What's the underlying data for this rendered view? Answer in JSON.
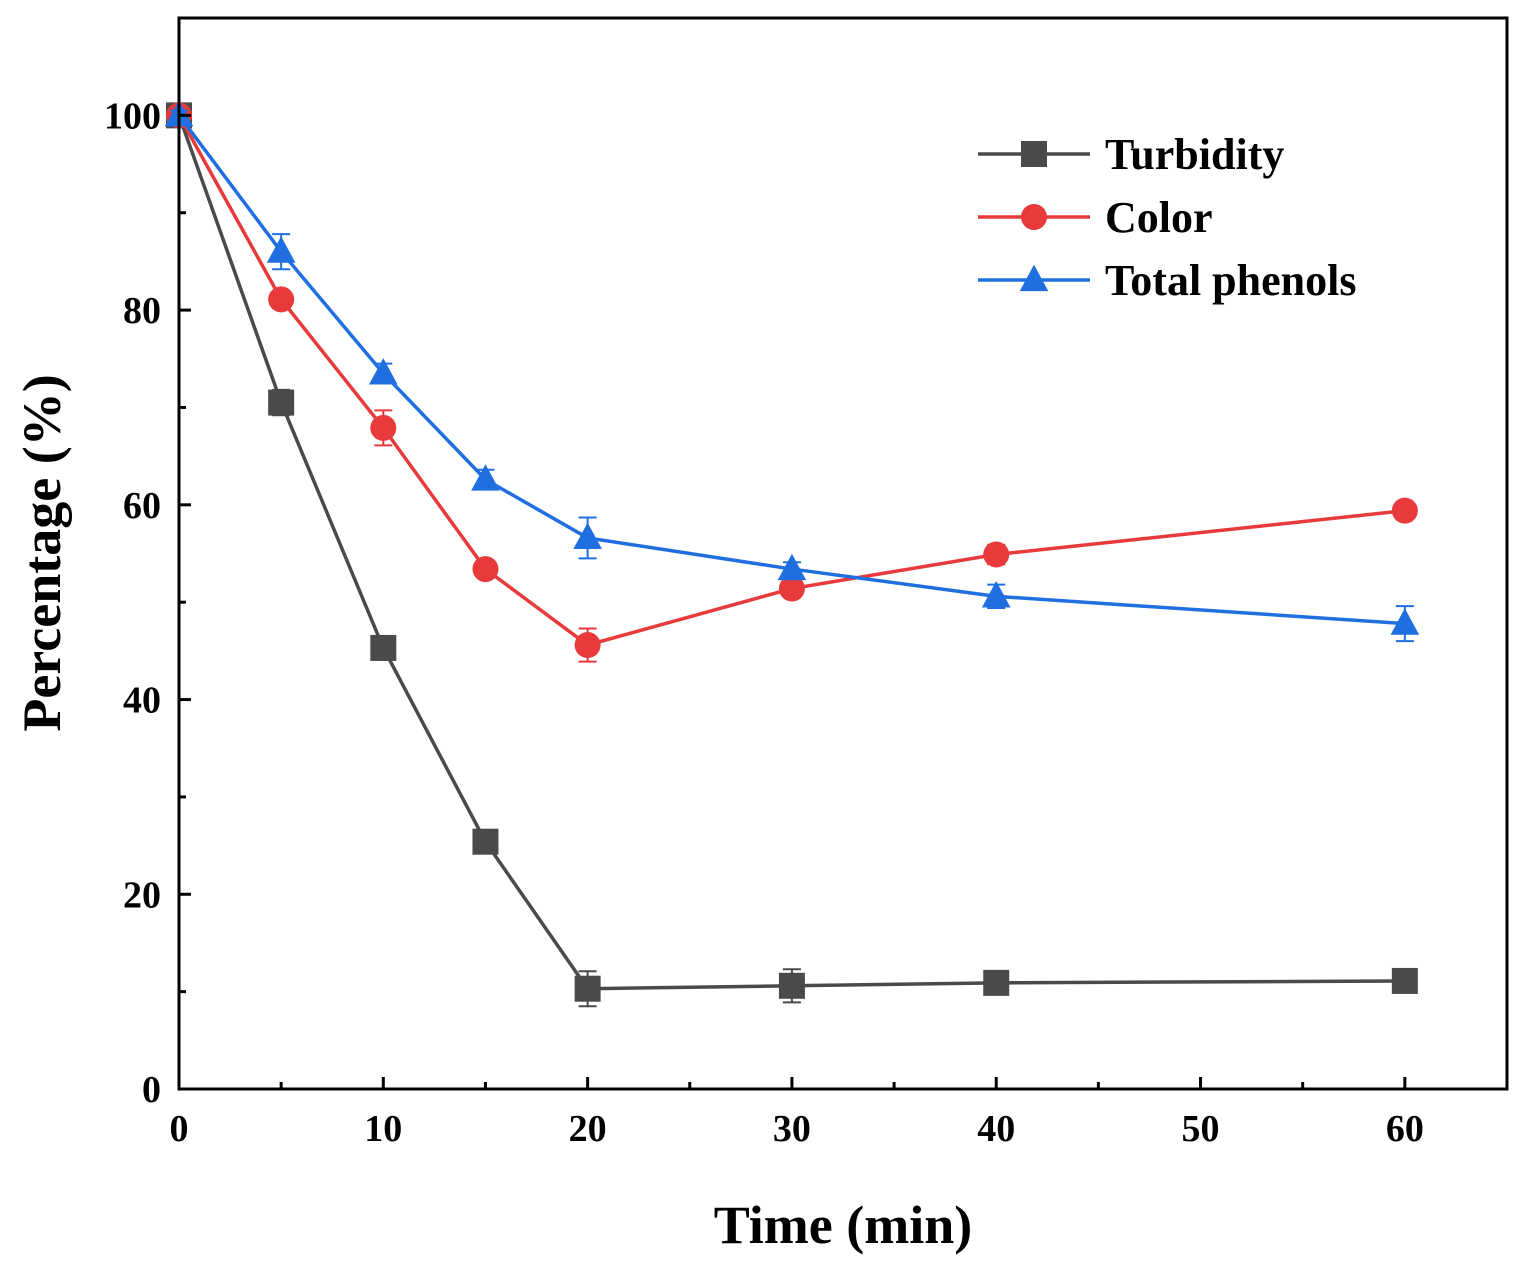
{
  "chart_data": {
    "type": "line",
    "title": "",
    "xlabel": "Time (min)",
    "ylabel": "Percentage (%)",
    "xlim": [
      0,
      65
    ],
    "ylim": [
      0,
      110
    ],
    "x_ticks": [
      0,
      10,
      20,
      30,
      40,
      50,
      60
    ],
    "x_minor_ticks": [
      5,
      15,
      25,
      35,
      45,
      55
    ],
    "y_ticks": [
      0,
      20,
      40,
      60,
      80,
      100
    ],
    "y_minor_ticks": [
      10,
      30,
      50,
      70,
      90
    ],
    "x_tick_labels": [
      "0",
      "10",
      "20",
      "30",
      "40",
      "50",
      "60"
    ],
    "y_tick_labels": [
      "0",
      "20",
      "40",
      "60",
      "80",
      "100"
    ],
    "grid": false,
    "legend_position": "top-right",
    "x": [
      0,
      5,
      10,
      15,
      20,
      30,
      40,
      60
    ],
    "series": [
      {
        "name": "Turbidity",
        "color": "#4a4a4a",
        "marker": "square",
        "values": [
          100,
          70.5,
          45.3,
          25.4,
          10.3,
          10.6,
          10.9,
          11.1
        ],
        "errors": [
          0.5,
          1.3,
          1.0,
          1.2,
          1.8,
          1.7,
          0.6,
          0.7
        ]
      },
      {
        "name": "Color",
        "color": "#e8393b",
        "marker": "circle",
        "values": [
          100,
          81.1,
          67.9,
          53.4,
          45.6,
          51.4,
          54.9,
          59.4
        ],
        "errors": [
          0.5,
          0.8,
          1.8,
          0.8,
          1.7,
          0.8,
          1.0,
          0.7
        ]
      },
      {
        "name": "Total phenols",
        "color": "#1f6fe0",
        "marker": "triangle",
        "values": [
          100,
          86.0,
          73.5,
          62.6,
          56.6,
          53.4,
          50.6,
          47.8
        ],
        "errors": [
          0.5,
          1.8,
          1.0,
          1.0,
          2.1,
          0.7,
          1.2,
          1.8
        ]
      }
    ]
  }
}
